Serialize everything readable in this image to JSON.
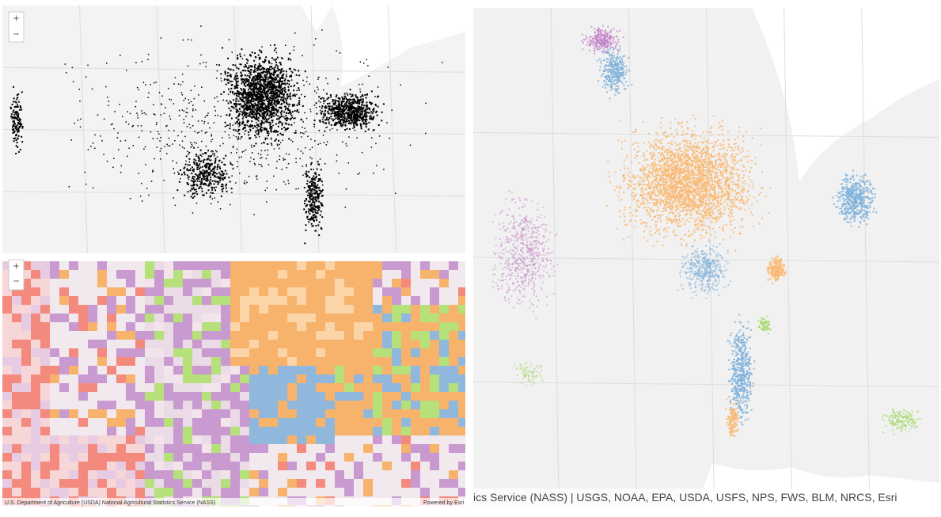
{
  "panels": [
    {
      "zoom_in": "+",
      "zoom_out": "−"
    },
    {
      "zoom_in": "+",
      "zoom_out": "−",
      "attribution": "U.S. Department of Agriculture (USDA) National Agricultural Statistics Service (NASS)",
      "powered_by": "Powered by Esri"
    },
    {
      "attribution": "ics Service (NASS) | USGS, NOAA, EPA, USDA, USFS, NPS, FWS, BLM, NRCS, Esri"
    }
  ]
}
